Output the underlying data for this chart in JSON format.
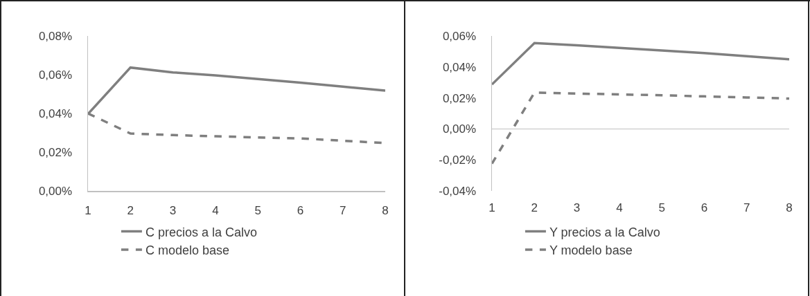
{
  "chart_data": [
    {
      "type": "line",
      "categories": [
        "1",
        "2",
        "3",
        "4",
        "5",
        "6",
        "7",
        "8"
      ],
      "series": [
        {
          "name": "C precios a la Calvo",
          "color": "#7f7f7f",
          "line_style": "solid",
          "values": [
            0.0397,
            0.0637,
            0.0612,
            0.0596,
            0.0578,
            0.0559,
            0.0538,
            0.0518
          ]
        },
        {
          "name": "C modelo base",
          "color": "#7f7f7f",
          "line_style": "dashed",
          "values": [
            0.04,
            0.0296,
            0.0288,
            0.0282,
            0.0276,
            0.0271,
            0.0259,
            0.0247
          ]
        }
      ],
      "ylim": [
        0,
        0.08
      ],
      "yticks": [
        {
          "value": 0,
          "label": "0,00%"
        },
        {
          "value": 0.02,
          "label": "0,02%"
        },
        {
          "value": 0.04,
          "label": "0,04%"
        },
        {
          "value": 0.06,
          "label": "0,06%"
        },
        {
          "value": 0.08,
          "label": "0,08%"
        }
      ],
      "legend": "bottom",
      "grid": false,
      "marker": "none"
    },
    {
      "type": "line",
      "categories": [
        "1",
        "2",
        "3",
        "4",
        "5",
        "6",
        "7",
        "8"
      ],
      "series": [
        {
          "name": "Y precios a la Calvo",
          "color": "#7f7f7f",
          "line_style": "solid",
          "values": [
            0.0287,
            0.0554,
            0.054,
            0.0523,
            0.0506,
            0.0489,
            0.0469,
            0.0449
          ]
        },
        {
          "name": "Y modelo base",
          "color": "#7f7f7f",
          "line_style": "dashed",
          "values": [
            -0.0224,
            0.0234,
            0.0228,
            0.0223,
            0.0217,
            0.021,
            0.0203,
            0.0196
          ]
        }
      ],
      "ylim": [
        -0.04,
        0.06
      ],
      "yticks": [
        {
          "value": -0.04,
          "label": "-0,04%"
        },
        {
          "value": -0.02,
          "label": "-0,02%"
        },
        {
          "value": 0,
          "label": "0,00%"
        },
        {
          "value": 0.02,
          "label": "0,02%"
        },
        {
          "value": 0.04,
          "label": "0,04%"
        },
        {
          "value": 0.06,
          "label": "0,06%"
        }
      ],
      "legend": "bottom",
      "grid": false,
      "marker": "none"
    }
  ]
}
